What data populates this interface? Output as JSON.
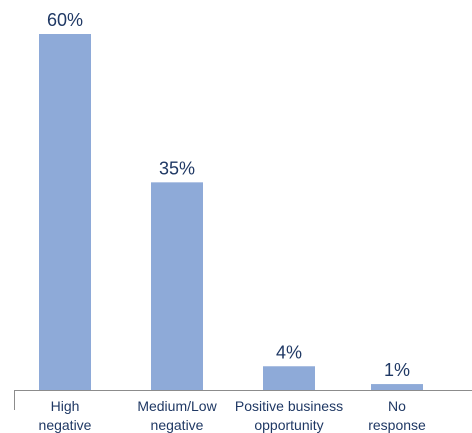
{
  "chart_data": {
    "type": "bar",
    "categories": [
      [
        "High",
        "negative"
      ],
      [
        "Medium/Low",
        "negative"
      ],
      [
        "Positive business",
        "opportunity"
      ],
      [
        "No",
        "response"
      ]
    ],
    "values": [
      60,
      35,
      4,
      1
    ],
    "value_labels": [
      "60%",
      "35%",
      "4%",
      "1%"
    ],
    "unit": "%",
    "ylim": [
      0,
      60
    ],
    "bar_color": "#8eaad8",
    "text_color": "#1f3864",
    "axis_color": "#8c8c8c",
    "grid": false,
    "legend": "none"
  }
}
